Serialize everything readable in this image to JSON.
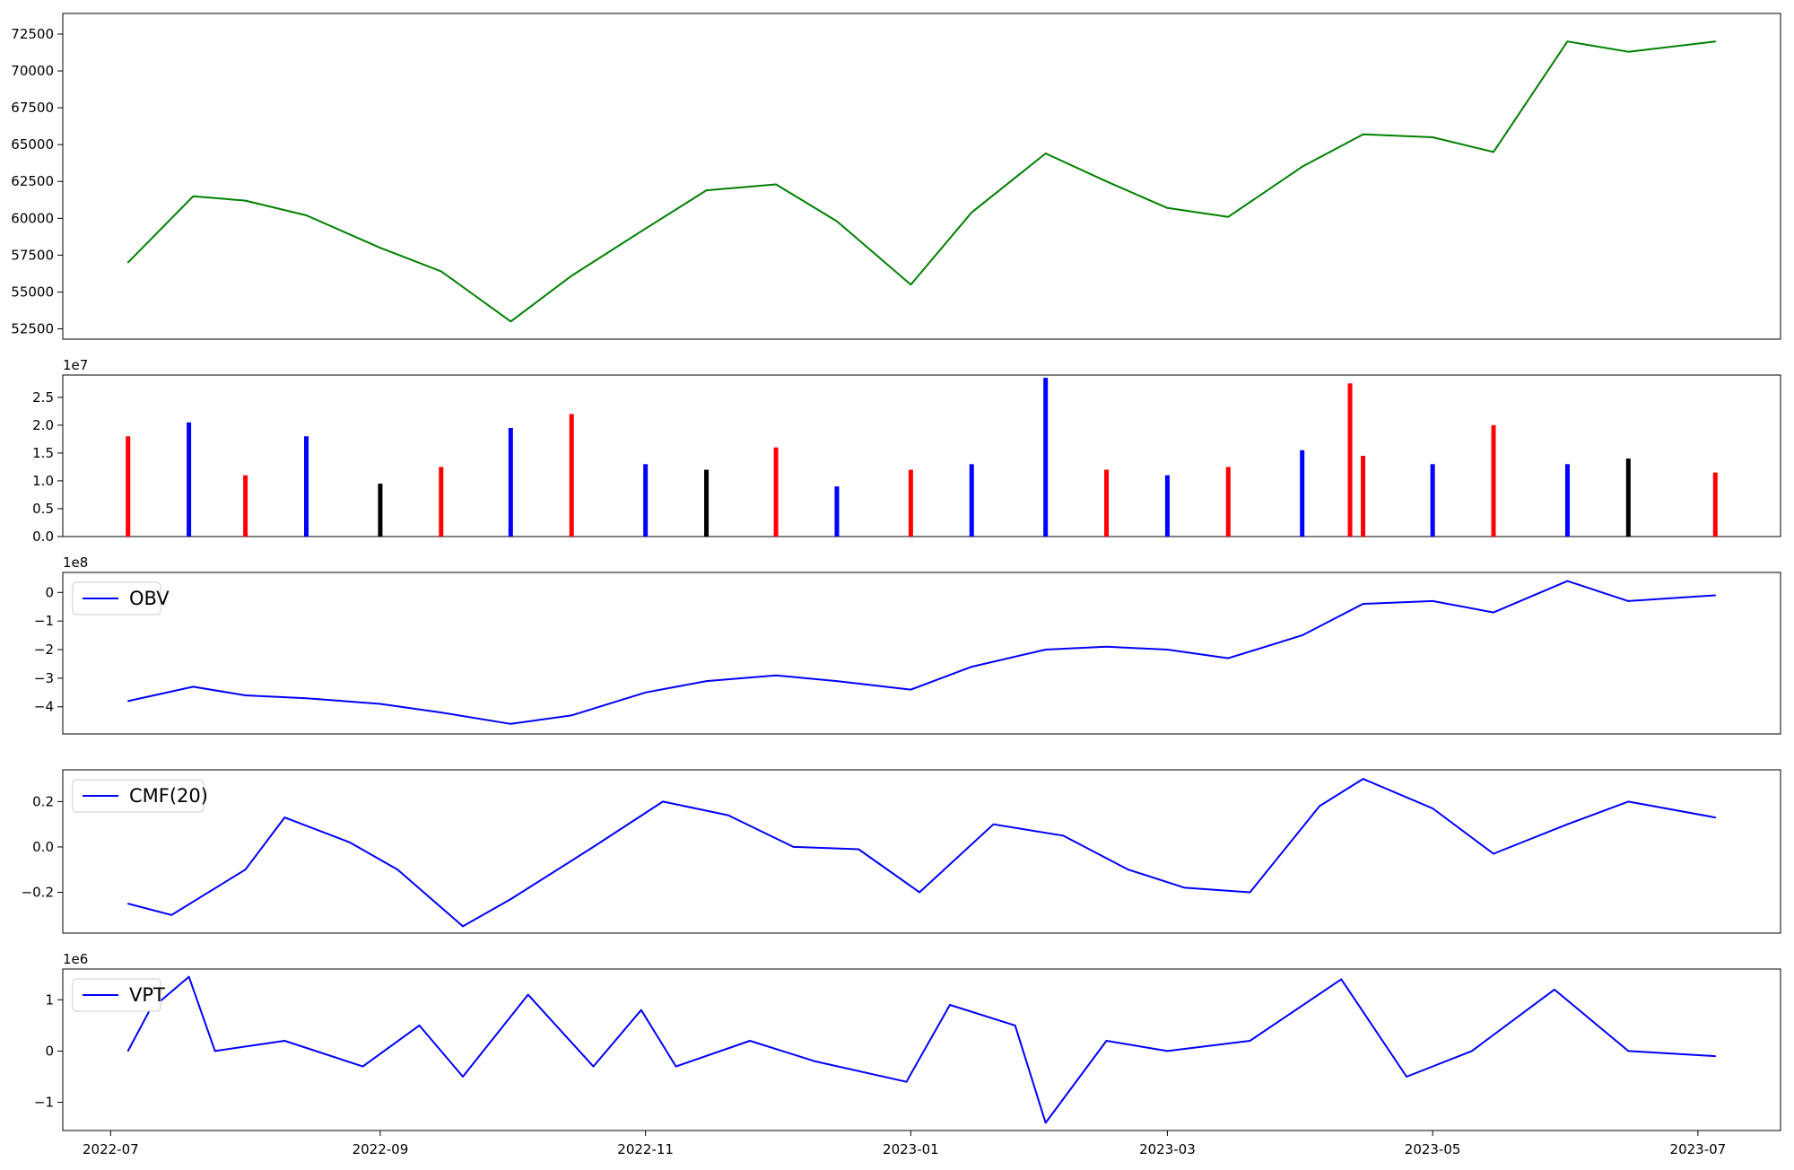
{
  "chart_data": [
    {
      "type": "line",
      "panel": "price",
      "series": [
        {
          "color": "#008000",
          "x": [
            "2022-07-05",
            "2022-07-20",
            "2022-08-01",
            "2022-08-15",
            "2022-09-01",
            "2022-09-15",
            "2022-10-01",
            "2022-10-15",
            "2022-11-01",
            "2022-11-15",
            "2022-12-01",
            "2022-12-15",
            "2023-01-01",
            "2023-01-15",
            "2023-02-01",
            "2023-02-15",
            "2023-03-01",
            "2023-03-15",
            "2023-04-01",
            "2023-04-15",
            "2023-05-01",
            "2023-05-15",
            "2023-06-01",
            "2023-06-15",
            "2023-07-05"
          ],
          "y": [
            57000,
            61500,
            61200,
            60200,
            58000,
            56400,
            53000,
            56100,
            59300,
            61900,
            62300,
            59800,
            55500,
            60400,
            64400,
            62500,
            60700,
            60100,
            63500,
            65700,
            65500,
            64500,
            72000,
            71300,
            72000
          ]
        }
      ],
      "yticks": [
        "52500",
        "55000",
        "57500",
        "60000",
        "62500",
        "65000",
        "67500",
        "70000",
        "72500"
      ],
      "ylim": [
        51800,
        73900
      ]
    },
    {
      "type": "bar",
      "panel": "volume",
      "offset_label": "1e7",
      "yticks": [
        "0.0",
        "0.5",
        "1.0",
        "1.5",
        "2.0",
        "2.5"
      ],
      "ylim": [
        0,
        2.9
      ],
      "up_color": "#ff0000",
      "down_color": "#0000ff",
      "flat_color": "#000000",
      "series": [
        {
          "x": [
            "2022-07-05",
            "2022-07-19",
            "2022-08-01",
            "2022-08-15",
            "2022-09-01",
            "2022-09-15",
            "2022-10-01",
            "2022-10-15",
            "2022-11-01",
            "2022-11-15",
            "2022-12-01",
            "2022-12-15",
            "2023-01-01",
            "2023-01-15",
            "2023-02-01",
            "2023-02-15",
            "2023-03-01",
            "2023-03-15",
            "2023-04-01",
            "2023-04-12",
            "2023-04-15",
            "2023-05-01",
            "2023-05-15",
            "2023-06-01",
            "2023-06-15",
            "2023-07-05"
          ],
          "values": [
            1.8,
            2.05,
            1.1,
            1.8,
            0.95,
            1.25,
            1.95,
            2.2,
            1.3,
            1.2,
            1.6,
            0.9,
            1.2,
            1.3,
            2.85,
            1.2,
            1.1,
            1.25,
            1.55,
            2.75,
            1.45,
            1.3,
            2.0,
            1.3,
            1.4,
            1.15
          ]
        }
      ]
    },
    {
      "type": "line",
      "panel": "obv",
      "offset_label": "1e8",
      "yticks": [
        "0",
        "−1",
        "−2",
        "−3",
        "−4"
      ],
      "ylim": [
        -4.95,
        0.7
      ],
      "legend": "OBV",
      "series": [
        {
          "name": "OBV",
          "color": "#0000ff",
          "x": [
            "2022-07-05",
            "2022-07-20",
            "2022-08-01",
            "2022-08-15",
            "2022-09-01",
            "2022-09-15",
            "2022-10-01",
            "2022-10-15",
            "2022-11-01",
            "2022-11-15",
            "2022-12-01",
            "2022-12-15",
            "2023-01-01",
            "2023-01-15",
            "2023-02-01",
            "2023-02-15",
            "2023-03-01",
            "2023-03-15",
            "2023-04-01",
            "2023-04-15",
            "2023-05-01",
            "2023-05-15",
            "2023-06-01",
            "2023-06-15",
            "2023-07-05"
          ],
          "y": [
            -3.8,
            -3.3,
            -3.6,
            -3.7,
            -3.9,
            -4.2,
            -4.6,
            -4.3,
            -3.5,
            -3.1,
            -2.9,
            -3.1,
            -3.4,
            -2.6,
            -2.0,
            -1.9,
            -2.0,
            -2.3,
            -1.5,
            -0.4,
            -0.3,
            -0.7,
            0.4,
            -0.3,
            -0.1
          ]
        }
      ]
    },
    {
      "type": "line",
      "panel": "cmf",
      "yticks": [
        "−0.2",
        "0.0",
        "0.2"
      ],
      "ylim": [
        -0.38,
        0.34
      ],
      "legend": "CMF(20)",
      "series": [
        {
          "name": "CMF(20)",
          "color": "#0000ff",
          "x": [
            "2022-07-05",
            "2022-07-15",
            "2022-08-01",
            "2022-08-10",
            "2022-08-25",
            "2022-09-05",
            "2022-09-20",
            "2022-10-01",
            "2022-10-20",
            "2022-11-05",
            "2022-11-20",
            "2022-12-05",
            "2022-12-20",
            "2023-01-03",
            "2023-01-20",
            "2023-02-05",
            "2023-02-20",
            "2023-03-05",
            "2023-03-20",
            "2023-04-05",
            "2023-04-15",
            "2023-05-01",
            "2023-05-15",
            "2023-06-01",
            "2023-06-15",
            "2023-07-05"
          ],
          "y": [
            -0.25,
            -0.3,
            -0.1,
            0.13,
            0.02,
            -0.1,
            -0.35,
            -0.23,
            0.0,
            0.2,
            0.14,
            0.0,
            -0.01,
            -0.2,
            0.1,
            0.05,
            -0.1,
            -0.18,
            -0.2,
            0.18,
            0.3,
            0.17,
            -0.03,
            0.1,
            0.2,
            0.13
          ]
        }
      ]
    },
    {
      "type": "line",
      "panel": "vpt",
      "offset_label": "1e6",
      "yticks": [
        "−1",
        "0",
        "1"
      ],
      "ylim": [
        -1.55,
        1.6
      ],
      "legend": "VPT",
      "series": [
        {
          "name": "VPT",
          "color": "#0000ff",
          "x": [
            "2022-07-05",
            "2022-07-10",
            "2022-07-19",
            "2022-07-25",
            "2022-08-10",
            "2022-08-28",
            "2022-09-10",
            "2022-09-20",
            "2022-10-05",
            "2022-10-20",
            "2022-10-31",
            "2022-11-08",
            "2022-11-25",
            "2022-12-10",
            "2022-12-31",
            "2023-01-10",
            "2023-01-25",
            "2023-02-01",
            "2023-02-15",
            "2023-03-01",
            "2023-03-20",
            "2023-04-10",
            "2023-04-25",
            "2023-05-10",
            "2023-05-29",
            "2023-06-15",
            "2023-07-05"
          ],
          "y": [
            0.0,
            0.8,
            1.45,
            0.0,
            0.2,
            -0.3,
            0.5,
            -0.5,
            1.1,
            -0.3,
            0.8,
            -0.3,
            0.2,
            -0.2,
            -0.6,
            0.9,
            0.5,
            -1.4,
            0.2,
            0.0,
            0.2,
            1.4,
            -0.5,
            0.0,
            1.2,
            0.0,
            -0.1
          ]
        }
      ]
    }
  ],
  "x_axis": {
    "ticks": [
      "2022-07",
      "2022-09",
      "2022-11",
      "2023-01",
      "2023-03",
      "2023-05",
      "2023-07"
    ]
  }
}
